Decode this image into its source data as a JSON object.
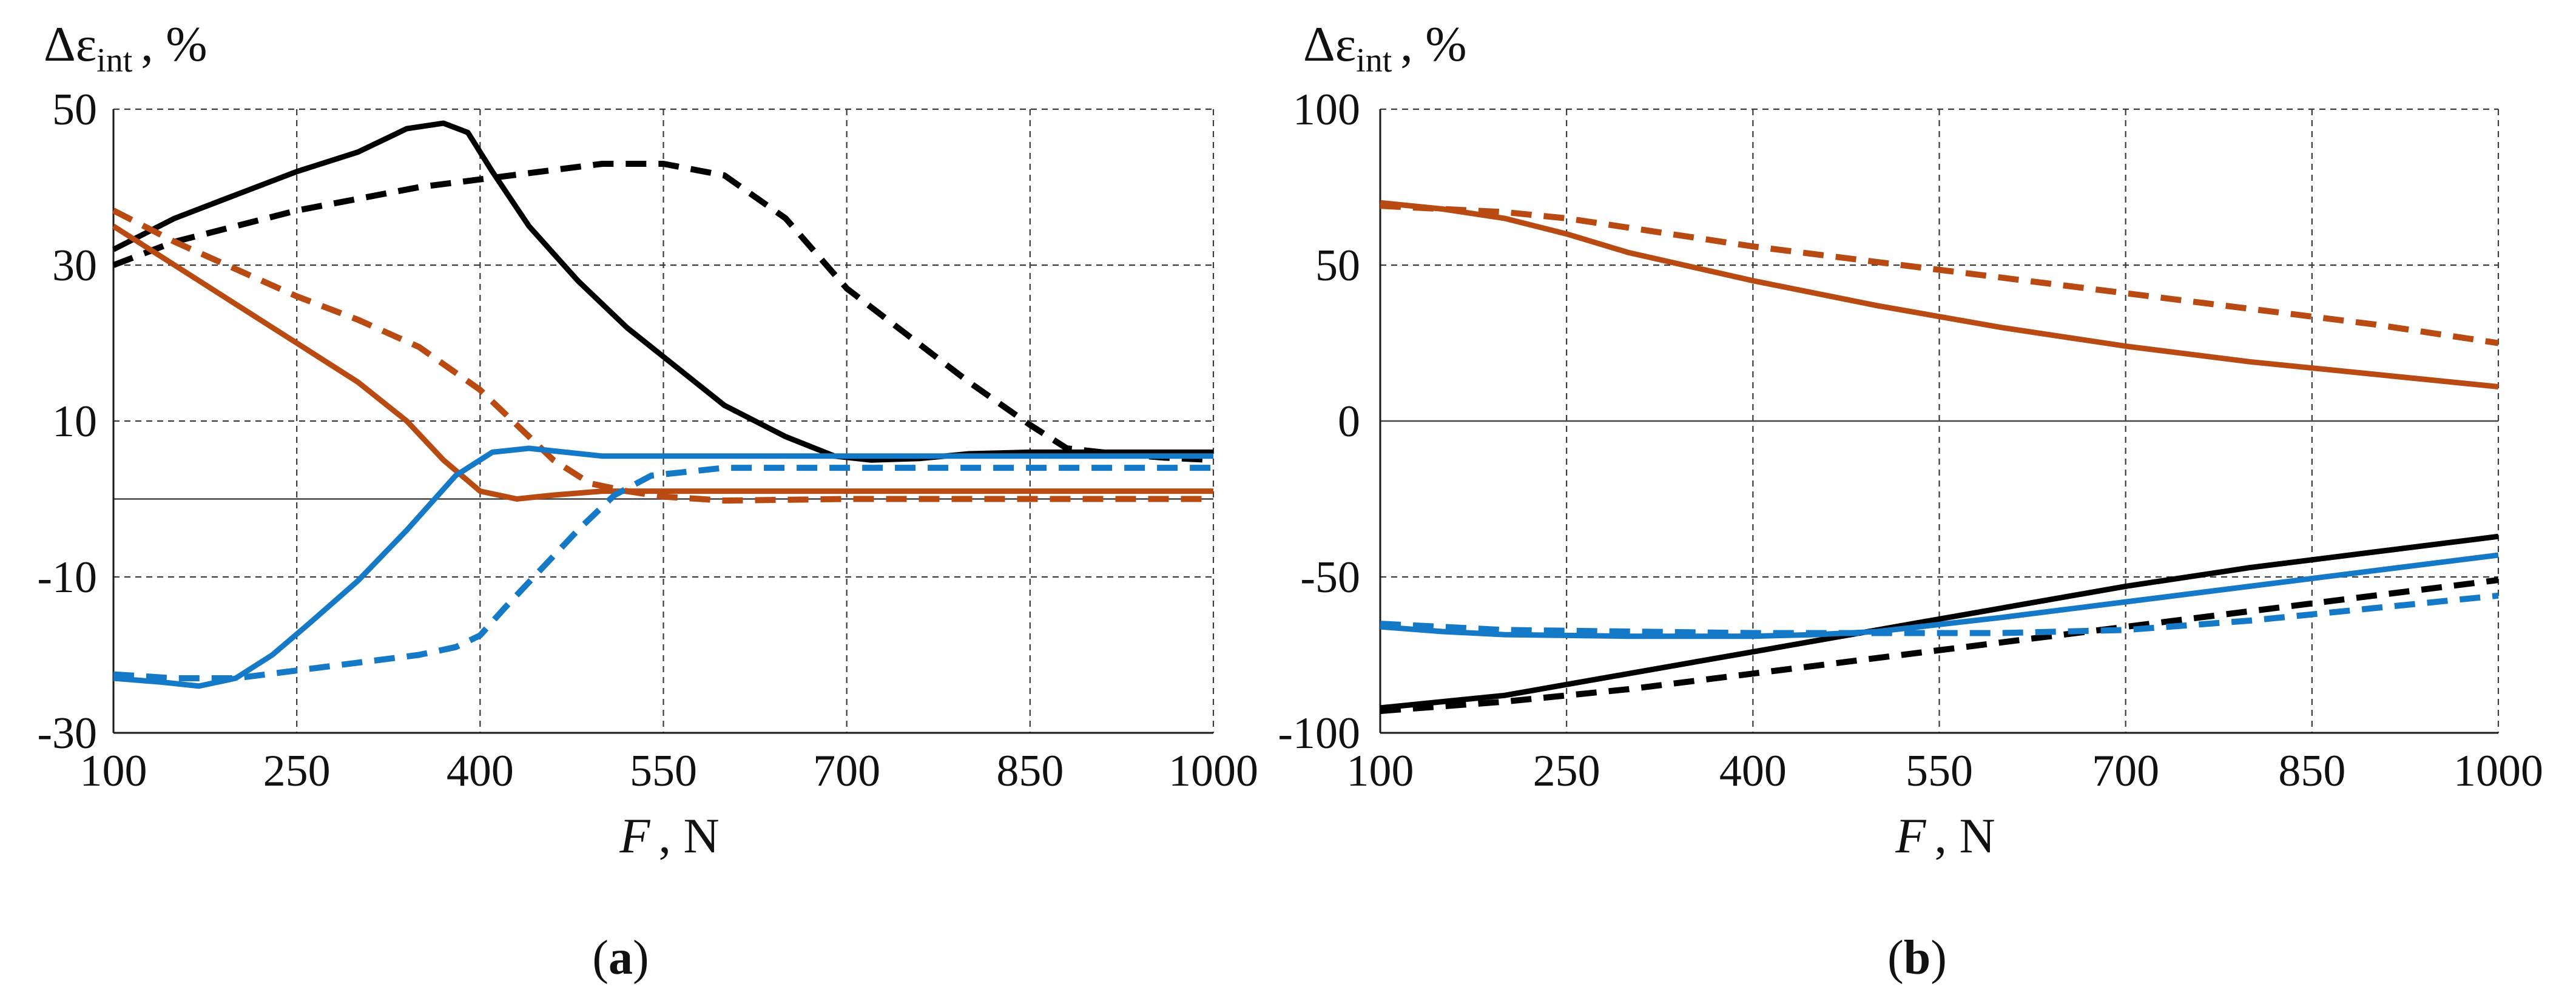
{
  "chart_data": [
    {
      "type": "line",
      "panel_label": "a",
      "xlabel": "F",
      "xlabel_unit": ", N",
      "ylabel_symbol": "Δε",
      "ylabel_subscript": "int",
      "ylabel_unit": ", %",
      "xlim": [
        100,
        1000
      ],
      "ylim": [
        -30,
        50
      ],
      "x_ticks": [
        100,
        250,
        400,
        550,
        700,
        850,
        1000
      ],
      "x_tick_labels": [
        "100",
        "250",
        "400",
        "550",
        "700",
        "850",
        "1000"
      ],
      "y_ticks": [
        -30,
        -10,
        10,
        30,
        50
      ],
      "y_tick_labels": [
        "-30",
        "-10",
        "10",
        "30",
        "50"
      ],
      "y_gridlines": [
        -30,
        -10,
        10,
        30,
        50
      ],
      "zero_line": 0,
      "grid": true,
      "series": [
        {
          "name": "black-solid",
          "color": "#000000",
          "style": "solid",
          "x": [
            100,
            150,
            200,
            250,
            300,
            340,
            370,
            390,
            410,
            440,
            480,
            520,
            560,
            600,
            650,
            690,
            720,
            760,
            800,
            850,
            900,
            950,
            1000
          ],
          "y": [
            32,
            36,
            39,
            42,
            44.5,
            47.5,
            48.2,
            47,
            42,
            35,
            28,
            22,
            17,
            12,
            8,
            5.5,
            5,
            5.2,
            5.8,
            6,
            6,
            6,
            6
          ]
        },
        {
          "name": "black-dashed",
          "color": "#000000",
          "style": "dashed",
          "x": [
            100,
            150,
            200,
            250,
            300,
            350,
            400,
            450,
            500,
            550,
            600,
            650,
            700,
            750,
            800,
            850,
            880,
            920,
            960,
            1000
          ],
          "y": [
            30,
            33,
            35,
            37,
            38.5,
            40,
            41,
            42,
            43,
            43,
            41.5,
            36,
            27,
            21,
            15,
            9.5,
            6.5,
            5.8,
            5.3,
            5
          ]
        },
        {
          "name": "orange-solid",
          "color": "#b84a12",
          "style": "solid",
          "x": [
            100,
            150,
            200,
            250,
            300,
            340,
            370,
            400,
            430,
            460,
            500,
            550,
            600,
            700,
            800,
            900,
            1000
          ],
          "y": [
            35,
            30,
            25,
            20,
            15,
            10,
            5,
            1,
            0,
            0.5,
            1,
            1,
            1,
            1,
            1,
            1,
            1
          ]
        },
        {
          "name": "orange-dashed",
          "color": "#b84a12",
          "style": "dashed",
          "x": [
            100,
            150,
            200,
            250,
            300,
            350,
            400,
            430,
            460,
            490,
            520,
            550,
            600,
            700,
            800,
            900,
            1000
          ],
          "y": [
            37,
            33,
            29.5,
            26,
            23,
            19.5,
            14,
            9.5,
            5,
            2,
            1,
            0.3,
            -0.2,
            0,
            0,
            0,
            0
          ]
        },
        {
          "name": "blue-solid",
          "color": "#1479c7",
          "style": "solid",
          "x": [
            100,
            140,
            170,
            200,
            230,
            260,
            300,
            340,
            380,
            410,
            440,
            470,
            500,
            550,
            600,
            700,
            800,
            900,
            1000
          ],
          "y": [
            -23,
            -23.5,
            -24,
            -23,
            -20,
            -16,
            -10.5,
            -4,
            3,
            6,
            6.5,
            6,
            5.5,
            5.5,
            5.5,
            5.5,
            5.5,
            5.5,
            5.5
          ]
        },
        {
          "name": "blue-dashed",
          "color": "#1479c7",
          "style": "dashed",
          "x": [
            100,
            150,
            200,
            250,
            300,
            350,
            380,
            400,
            420,
            450,
            480,
            510,
            540,
            600,
            700,
            800,
            900,
            1000
          ],
          "y": [
            -22.5,
            -23,
            -23,
            -22,
            -21,
            -20,
            -19,
            -17.5,
            -14,
            -9,
            -4,
            0.5,
            3,
            4,
            4,
            4,
            4,
            4
          ]
        }
      ]
    },
    {
      "type": "line",
      "panel_label": "b",
      "xlabel": "F",
      "xlabel_unit": ", N",
      "ylabel_symbol": "Δε",
      "ylabel_subscript": "int",
      "ylabel_unit": ", %",
      "xlim": [
        100,
        1000
      ],
      "ylim": [
        -100,
        100
      ],
      "x_ticks": [
        100,
        250,
        400,
        550,
        700,
        850,
        1000
      ],
      "x_tick_labels": [
        "100",
        "250",
        "400",
        "550",
        "700",
        "850",
        "1000"
      ],
      "y_ticks": [
        -100,
        -50,
        0,
        50,
        100
      ],
      "y_tick_labels": [
        "-100",
        "-50",
        "0",
        "50",
        "100"
      ],
      "y_gridlines": [
        -100,
        -50,
        50,
        100
      ],
      "zero_line": 0,
      "grid": true,
      "series": [
        {
          "name": "orange-solid",
          "color": "#b84a12",
          "style": "solid",
          "x": [
            100,
            150,
            200,
            250,
            300,
            400,
            500,
            600,
            700,
            800,
            900,
            1000
          ],
          "y": [
            70,
            68,
            65,
            60,
            54,
            45,
            37,
            30,
            24,
            19,
            15,
            11
          ]
        },
        {
          "name": "orange-dashed",
          "color": "#b84a12",
          "style": "dashed",
          "x": [
            100,
            150,
            200,
            250,
            300,
            400,
            500,
            600,
            700,
            800,
            900,
            1000
          ],
          "y": [
            69,
            68,
            67,
            65,
            62,
            56,
            51,
            46,
            41,
            36,
            31,
            25
          ]
        },
        {
          "name": "black-solid",
          "color": "#000000",
          "style": "solid",
          "x": [
            100,
            200,
            300,
            400,
            500,
            600,
            700,
            800,
            900,
            1000
          ],
          "y": [
            -92,
            -88,
            -81,
            -74,
            -67,
            -60,
            -53,
            -47,
            -42,
            -37
          ]
        },
        {
          "name": "black-dashed",
          "color": "#000000",
          "style": "dashed",
          "x": [
            100,
            200,
            300,
            400,
            500,
            600,
            700,
            800,
            900,
            1000
          ],
          "y": [
            -93,
            -90,
            -86,
            -81,
            -76,
            -71,
            -66,
            -61,
            -56,
            -51
          ]
        },
        {
          "name": "blue-solid",
          "color": "#1479c7",
          "style": "solid",
          "x": [
            100,
            150,
            200,
            300,
            400,
            450,
            500,
            600,
            700,
            800,
            900,
            1000
          ],
          "y": [
            -66,
            -67.5,
            -68.5,
            -69,
            -69,
            -68.5,
            -67.5,
            -63,
            -58,
            -53,
            -48,
            -43
          ]
        },
        {
          "name": "blue-dashed",
          "color": "#1479c7",
          "style": "dashed",
          "x": [
            100,
            200,
            300,
            400,
            500,
            600,
            700,
            800,
            850,
            900,
            1000
          ],
          "y": [
            -65,
            -67,
            -67.5,
            -68,
            -68,
            -68,
            -67,
            -64,
            -62,
            -60,
            -56
          ]
        }
      ]
    }
  ]
}
